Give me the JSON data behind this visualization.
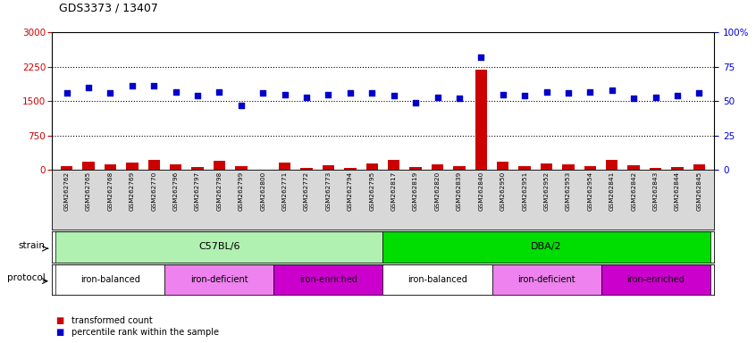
{
  "title": "GDS3373 / 13407",
  "samples": [
    "GSM262762",
    "GSM262765",
    "GSM262768",
    "GSM262769",
    "GSM262770",
    "GSM262796",
    "GSM262797",
    "GSM262798",
    "GSM262799",
    "GSM262800",
    "GSM262771",
    "GSM262772",
    "GSM262773",
    "GSM262794",
    "GSM262795",
    "GSM262817",
    "GSM262819",
    "GSM262820",
    "GSM262839",
    "GSM262840",
    "GSM262950",
    "GSM262951",
    "GSM262952",
    "GSM262953",
    "GSM262954",
    "GSM262841",
    "GSM262842",
    "GSM262843",
    "GSM262844",
    "GSM262845"
  ],
  "bar_values": [
    85,
    175,
    120,
    160,
    220,
    120,
    55,
    200,
    85,
    10,
    155,
    50,
    95,
    35,
    145,
    210,
    65,
    120,
    75,
    2180,
    175,
    70,
    135,
    115,
    80,
    220,
    90,
    50,
    60,
    110
  ],
  "blue_values": [
    56,
    60,
    56,
    61,
    61,
    57,
    54,
    57,
    47,
    56,
    55,
    53,
    55,
    56,
    56,
    54,
    49,
    53,
    52,
    82,
    55,
    54,
    57,
    56,
    57,
    58,
    52,
    53,
    54,
    56
  ],
  "left_ylim": [
    0,
    3000
  ],
  "left_yticks": [
    0,
    750,
    1500,
    2250,
    3000
  ],
  "right_ylim": [
    0,
    100
  ],
  "right_yticks": [
    0,
    25,
    50,
    75,
    100
  ],
  "right_yticklabels": [
    "0",
    "25",
    "50",
    "75",
    "100%"
  ],
  "bar_color": "#cc0000",
  "blue_color": "#0000cc",
  "strain_groups": [
    {
      "label": "C57BL/6",
      "start": 0,
      "end": 15,
      "color": "#b0f0b0"
    },
    {
      "label": "DBA/2",
      "start": 15,
      "end": 30,
      "color": "#00dd00"
    }
  ],
  "protocol_groups": [
    {
      "label": "iron-balanced",
      "start": 0,
      "end": 5,
      "color": "#ffffff"
    },
    {
      "label": "iron-deficient",
      "start": 5,
      "end": 10,
      "color": "#ee82ee"
    },
    {
      "label": "iron-enriched",
      "start": 10,
      "end": 15,
      "color": "#cc00cc"
    },
    {
      "label": "iron-balanced",
      "start": 15,
      "end": 20,
      "color": "#ffffff"
    },
    {
      "label": "iron-deficient",
      "start": 20,
      "end": 25,
      "color": "#ee82ee"
    },
    {
      "label": "iron-enriched",
      "start": 25,
      "end": 30,
      "color": "#cc00cc"
    }
  ],
  "left_tick_color": "#cc0000",
  "right_tick_color": "#0000cc",
  "xlabel_bg_color": "#d8d8d8",
  "plot_bg_color": "#ffffff"
}
